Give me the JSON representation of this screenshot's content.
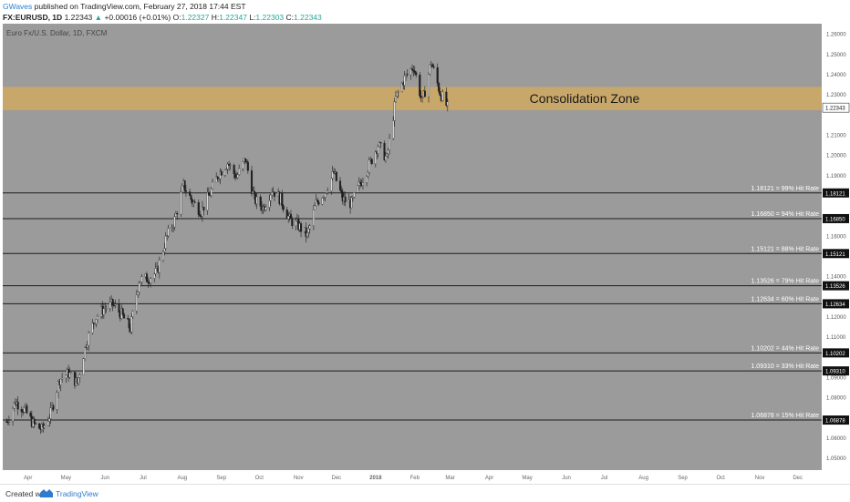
{
  "header": {
    "author": "GWaves",
    "published": "published on TradingView.com, February 27, 2018 17:44 EST",
    "symbol": "FX:EURUSD, 1D",
    "last": "1.22343",
    "change_arrow": "▲",
    "change": "+0.00016 (+0.01%)",
    "o_label": "O:",
    "o_val": "1.22327",
    "h_label": "H:",
    "h_val": "1.22347",
    "l_label": "L:",
    "l_val": "1.22303",
    "c_label": "C:",
    "c_val": "1.22343"
  },
  "footer": {
    "created": "Created with",
    "brand": "TradingView",
    "logo_icon": "tradingview-logo-icon"
  },
  "colors": {
    "plot_bg": "#9b9b9b",
    "zone": "#c8a76a",
    "candle_up": "#d9d9d9",
    "candle_down": "#1e1e1e",
    "level_line": "#1c1c1c"
  },
  "chart_data": {
    "type": "candlestick",
    "title": "Euro Fx/U.S. Dollar, 1D, FXCM",
    "x_ticks": [
      "Apr",
      "May",
      "Jun",
      "Jul",
      "Aug",
      "Sep",
      "Oct",
      "Nov",
      "Dec",
      "2018",
      "Feb",
      "Mar",
      "Apr",
      "May",
      "Jun",
      "Jul",
      "Aug",
      "Sep",
      "Oct",
      "Nov",
      "Dec"
    ],
    "y_ticks": [
      "1.26000",
      "1.25000",
      "1.24000",
      "1.23000",
      "1.21000",
      "1.20000",
      "1.19000",
      "1.16000",
      "1.14000",
      "1.12000",
      "1.11000",
      "1.09000",
      "1.08000",
      "1.07000",
      "1.06000",
      "1.05000"
    ],
    "ylim": [
      1.044,
      1.265
    ],
    "last_price": "1.22343",
    "zone": {
      "label": "Consolidation Zone",
      "from": 1.2222,
      "to": 1.2337
    },
    "levels": [
      {
        "value": 1.18121,
        "price_label": "1.18121",
        "annotation": "1.18121 = 99% Hit Rate"
      },
      {
        "value": 1.1685,
        "price_label": "1.16850",
        "annotation": "1.16850 = 94% Hit Rate"
      },
      {
        "value": 1.15121,
        "price_label": "1.15121",
        "annotation": "1.15121 = 88% Hit Rate"
      },
      {
        "value": 1.13526,
        "price_label": "1.13526",
        "annotation": "1.13526 = 79% Hit Rate"
      },
      {
        "value": 1.12634,
        "price_label": "1.12634",
        "annotation": "1.12634 = 60% Hit Rate"
      },
      {
        "value": 1.10202,
        "price_label": "1.10202",
        "annotation": "1.10202 = 44% Hit Rate"
      },
      {
        "value": 1.0931,
        "price_label": "1.09310",
        "annotation": "1.09310 = 33% Hit Rate"
      },
      {
        "value": 1.06878,
        "price_label": "1.06878",
        "annotation": "1.06878 = 15% Hit Rate"
      }
    ],
    "price_path": [
      [
        "2017-03-15",
        1.068
      ],
      [
        "2017-03-22",
        1.078
      ],
      [
        "2017-03-29",
        1.074
      ],
      [
        "2017-04-05",
        1.067
      ],
      [
        "2017-04-12",
        1.064
      ],
      [
        "2017-04-19",
        1.072
      ],
      [
        "2017-04-26",
        1.089
      ],
      [
        "2017-05-03",
        1.092
      ],
      [
        "2017-05-10",
        1.087
      ],
      [
        "2017-05-17",
        1.107
      ],
      [
        "2017-05-24",
        1.119
      ],
      [
        "2017-05-31",
        1.124
      ],
      [
        "2017-06-07",
        1.126
      ],
      [
        "2017-06-14",
        1.121
      ],
      [
        "2017-06-21",
        1.114
      ],
      [
        "2017-06-28",
        1.138
      ],
      [
        "2017-07-05",
        1.139
      ],
      [
        "2017-07-12",
        1.142
      ],
      [
        "2017-07-19",
        1.158
      ],
      [
        "2017-07-26",
        1.168
      ],
      [
        "2017-08-02",
        1.185
      ],
      [
        "2017-08-09",
        1.177
      ],
      [
        "2017-08-16",
        1.172
      ],
      [
        "2017-08-23",
        1.181
      ],
      [
        "2017-08-30",
        1.191
      ],
      [
        "2017-09-06",
        1.196
      ],
      [
        "2017-09-13",
        1.189
      ],
      [
        "2017-09-20",
        1.198
      ],
      [
        "2017-09-27",
        1.178
      ],
      [
        "2017-10-04",
        1.174
      ],
      [
        "2017-10-11",
        1.183
      ],
      [
        "2017-10-18",
        1.178
      ],
      [
        "2017-10-25",
        1.168
      ],
      [
        "2017-11-01",
        1.165
      ],
      [
        "2017-11-08",
        1.16
      ],
      [
        "2017-11-15",
        1.176
      ],
      [
        "2017-11-22",
        1.182
      ],
      [
        "2017-11-29",
        1.191
      ],
      [
        "2017-12-06",
        1.178
      ],
      [
        "2017-12-13",
        1.176
      ],
      [
        "2017-12-20",
        1.186
      ],
      [
        "2017-12-27",
        1.195
      ],
      [
        "2018-01-03",
        1.205
      ],
      [
        "2018-01-10",
        1.198
      ],
      [
        "2018-01-17",
        1.228
      ],
      [
        "2018-01-24",
        1.238
      ],
      [
        "2018-01-31",
        1.244
      ],
      [
        "2018-02-07",
        1.226
      ],
      [
        "2018-02-14",
        1.246
      ],
      [
        "2018-02-21",
        1.231
      ],
      [
        "2018-02-27",
        1.2234
      ]
    ]
  }
}
